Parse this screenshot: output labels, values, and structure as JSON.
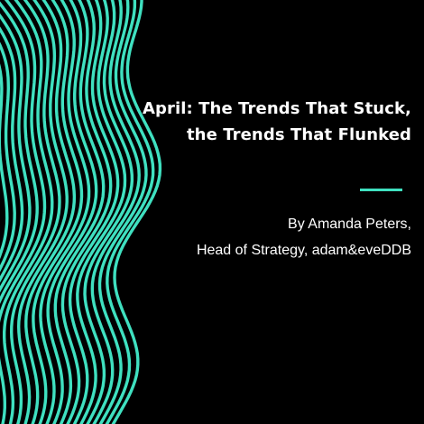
{
  "title": {
    "line1": "April: The Trends That Stuck,",
    "line2": "the Trends That Flunked"
  },
  "byline": {
    "author": "By Amanda Peters,",
    "role": "Head of Strategy, adam&eveDDB"
  },
  "colors": {
    "background": "#000000",
    "accent": "#3fe0c0",
    "text": "#ffffff"
  },
  "decoration": "wavy-line-pattern"
}
